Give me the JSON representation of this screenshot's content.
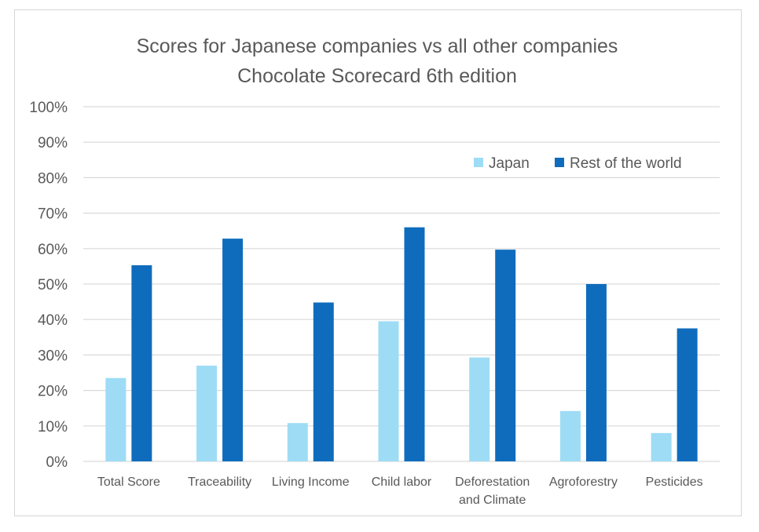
{
  "chart_data": {
    "type": "bar",
    "title": "Scores for Japanese companies vs all other companies",
    "subtitle": "Chocolate Scorecard 6th edition",
    "xlabel": "",
    "ylabel": "",
    "ylim": [
      0,
      100
    ],
    "yticks": [
      "0%",
      "10%",
      "20%",
      "30%",
      "40%",
      "50%",
      "60%",
      "70%",
      "80%",
      "90%",
      "100%"
    ],
    "grid": true,
    "legend_position": "top-right",
    "categories": [
      [
        "Total Score"
      ],
      [
        "Traceability"
      ],
      [
        "Living Income"
      ],
      [
        "Child labor"
      ],
      [
        "Deforestation",
        "and Climate"
      ],
      [
        "Agroforestry"
      ],
      [
        "Pesticides"
      ]
    ],
    "series": [
      {
        "name": "Japan",
        "color": "#9edcf5",
        "values": [
          23.5,
          27,
          10.8,
          39.5,
          29.3,
          14.2,
          8
        ]
      },
      {
        "name": "Rest of the world",
        "color": "#0f6cbd",
        "values": [
          55.3,
          62.8,
          44.8,
          66,
          59.7,
          50,
          37.5
        ]
      }
    ]
  }
}
